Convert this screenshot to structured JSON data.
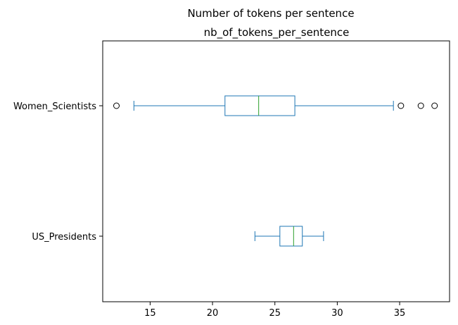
{
  "chart_data": {
    "type": "boxplot",
    "orientation": "horizontal",
    "title": "Number of tokens per sentence",
    "subtitle": "nb_of_tokens_per_sentence",
    "xlabel": "",
    "ylabel": "",
    "xlim": [
      11.2,
      39.0
    ],
    "xticks": [
      15,
      20,
      25,
      30,
      35
    ],
    "xtick_labels": [
      "15",
      "20",
      "25",
      "30",
      "35"
    ],
    "grid": false,
    "colors": {
      "box": "#1f77b4",
      "median": "#2ca02c",
      "flier": "#000000"
    },
    "categories": [
      "Women_Scientists",
      "US_Presidents"
    ],
    "series": [
      {
        "category": "Women_Scientists",
        "whisker_low": 13.7,
        "q1": 21.0,
        "median": 23.7,
        "q3": 26.6,
        "whisker_high": 34.5,
        "outliers": [
          12.3,
          35.1,
          36.7,
          37.8
        ]
      },
      {
        "category": "US_Presidents",
        "whisker_low": 23.4,
        "q1": 25.4,
        "median": 26.5,
        "q3": 27.2,
        "whisker_high": 28.9,
        "outliers": []
      }
    ]
  }
}
